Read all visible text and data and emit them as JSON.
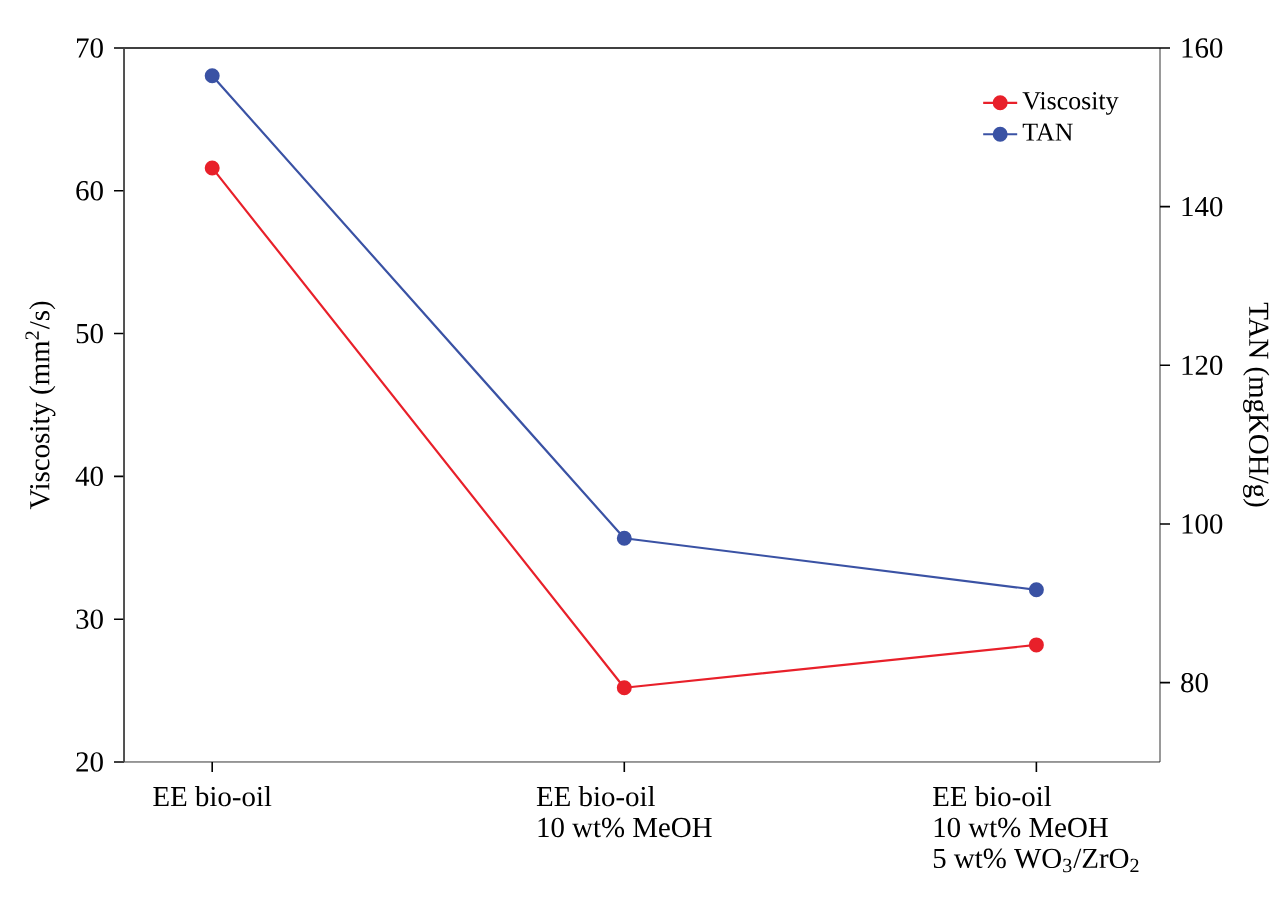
{
  "chart_data": {
    "type": "line",
    "ylabel": "Viscosity (mm$^{2}$/s)",
    "y2label": "TAN (mgKOH/g)",
    "categories": [
      "EE bio-oil",
      "EE bio-oil\n10 wt% MeOH",
      "EE bio-oil\n10 wt% MeOH\n5 wt% WO$_{3}$/ZrO$_{2}$"
    ],
    "series": [
      {
        "name": "Viscosity",
        "color": "#e8202a",
        "values": [
          61.6,
          25.2,
          28.2
        ]
      },
      {
        "name": "TAN",
        "color": "#3a52a4",
        "values": [
          156.5,
          98.2,
          91.7
        ],
        "axis": "y2"
      }
    ],
    "ylim": [
      20,
      70
    ],
    "yticks": [
      20,
      30,
      40,
      50,
      60,
      70
    ],
    "y2lim": [
      70,
      160
    ],
    "y2ticks": [
      80,
      100,
      120,
      140,
      160
    ],
    "marker": "circle",
    "line_style": "solid",
    "legend": "top right"
  }
}
